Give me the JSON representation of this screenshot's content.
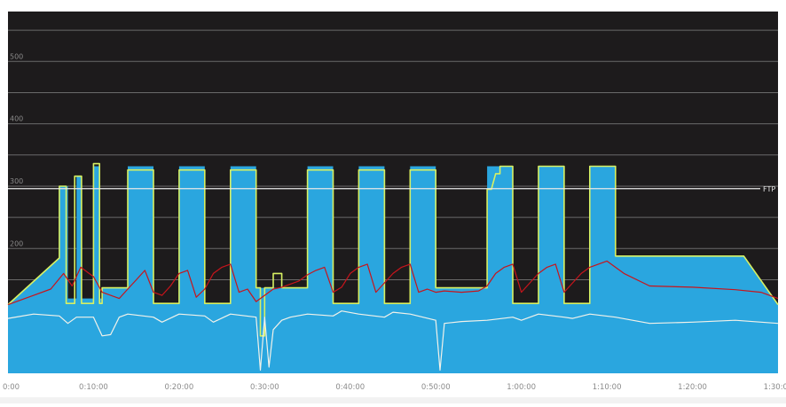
{
  "chart_data": {
    "type": "area",
    "x_unit": "minutes",
    "xlim": [
      0,
      90
    ],
    "ylim": [
      0,
      580
    ],
    "grid": true,
    "legend": "none",
    "x_tick_values": [
      0,
      10,
      20,
      30,
      40,
      50,
      60,
      70,
      80,
      90
    ],
    "x_ticks": [
      "0:00",
      "0:10:00",
      "0:20:00",
      "0:30:00",
      "0:40:00",
      "0:50:00",
      "1:00:00",
      "1:10:00",
      "1:20:00",
      "1:30:00"
    ],
    "y_ticks": [
      200,
      300,
      400,
      500
    ],
    "y_tick_labels": [
      "200",
      "300",
      "400",
      "500"
    ],
    "ftp": {
      "label": "FTP",
      "value": 296
    },
    "colors": {
      "background": "#1d1b1c",
      "grid": "#6a6a6a",
      "target": "#2aa6df",
      "power": "#d7f063",
      "heart_rate": "#c8141b",
      "cadence": "#f2f2ea",
      "ftp_line": "#e8e8e8",
      "tick_text": "#8a8a8a"
    },
    "series": [
      {
        "key": "target",
        "x": [
          0,
          6,
          6,
          7,
          7,
          8,
          8,
          8.6,
          8.6,
          10,
          10,
          10.7,
          10.7,
          11,
          11,
          14,
          14,
          17,
          17,
          20,
          20,
          23,
          23,
          26,
          26,
          29,
          29,
          35,
          35,
          38,
          38,
          41,
          41,
          44,
          44,
          47,
          47,
          50,
          50,
          56,
          56,
          59,
          59,
          62,
          62,
          65,
          65,
          68,
          68,
          71,
          71,
          86,
          90
        ],
        "values": [
          110,
          185,
          300,
          300,
          120,
          120,
          316,
          316,
          120,
          120,
          332,
          332,
          120,
          120,
          137,
          137,
          332,
          332,
          112,
          112,
          332,
          332,
          112,
          112,
          332,
          332,
          137,
          137,
          332,
          332,
          112,
          112,
          332,
          332,
          112,
          112,
          332,
          332,
          137,
          137,
          332,
          332,
          112,
          112,
          332,
          332,
          112,
          112,
          332,
          332,
          188,
          188,
          110
        ]
      },
      {
        "key": "power",
        "x": [
          0,
          6,
          6,
          6.8,
          6.8,
          7.8,
          7.8,
          8.6,
          8.6,
          10,
          10,
          10.7,
          10.7,
          11,
          11,
          14,
          14,
          17,
          17,
          20,
          20,
          23,
          23,
          26,
          26,
          29,
          29,
          29.5,
          29.5,
          30,
          30,
          31,
          31,
          32,
          32,
          35,
          35,
          38,
          38,
          41,
          41,
          44,
          44,
          47,
          47,
          50,
          50,
          56,
          56,
          56.5,
          57,
          57.5,
          57.5,
          59,
          59,
          62,
          62,
          65,
          65,
          68,
          68,
          71,
          71,
          86,
          90
        ],
        "values": [
          110,
          185,
          300,
          300,
          112,
          112,
          316,
          316,
          112,
          112,
          336,
          336,
          112,
          112,
          137,
          137,
          326,
          326,
          112,
          112,
          326,
          326,
          112,
          112,
          326,
          326,
          137,
          137,
          60,
          60,
          137,
          137,
          160,
          160,
          137,
          137,
          326,
          326,
          112,
          112,
          326,
          326,
          112,
          112,
          326,
          326,
          137,
          137,
          295,
          295,
          320,
          320,
          332,
          332,
          112,
          112,
          332,
          332,
          112,
          112,
          332,
          332,
          188,
          188,
          110
        ]
      },
      {
        "key": "heart_rate",
        "x": [
          0,
          3,
          5,
          6.5,
          7.5,
          8.5,
          10,
          11,
          13,
          14,
          15,
          16,
          17,
          18,
          19,
          20,
          21,
          22,
          23,
          24,
          25,
          26,
          27,
          28,
          29,
          30,
          31,
          32,
          34,
          35,
          36,
          37,
          38,
          39,
          40,
          41,
          42,
          43,
          44,
          45,
          46,
          47,
          48,
          49,
          50,
          51,
          53,
          55,
          56,
          57,
          58,
          59,
          60,
          61,
          62,
          63,
          64,
          65,
          66,
          67,
          68,
          69,
          70,
          72,
          75,
          80,
          85,
          88,
          90
        ],
        "values": [
          110,
          125,
          135,
          160,
          140,
          170,
          155,
          130,
          120,
          135,
          150,
          165,
          130,
          125,
          140,
          160,
          165,
          122,
          135,
          160,
          170,
          175,
          130,
          135,
          115,
          125,
          135,
          138,
          148,
          158,
          165,
          170,
          130,
          138,
          160,
          170,
          175,
          130,
          145,
          160,
          170,
          175,
          130,
          135,
          130,
          132,
          130,
          132,
          140,
          160,
          170,
          175,
          130,
          145,
          160,
          170,
          175,
          130,
          145,
          160,
          170,
          175,
          180,
          160,
          140,
          138,
          134,
          130,
          120
        ]
      },
      {
        "key": "cadence",
        "x": [
          0,
          3,
          6,
          7,
          8,
          10,
          11,
          12,
          13,
          14,
          17,
          18,
          20,
          23,
          24,
          26,
          29,
          29.5,
          30,
          30.5,
          31,
          32,
          33,
          35,
          38,
          39,
          41,
          44,
          45,
          47,
          50,
          50.5,
          51,
          53,
          56,
          59,
          60,
          62,
          65,
          66,
          68,
          71,
          73,
          75,
          80,
          85,
          90
        ],
        "values": [
          88,
          95,
          92,
          80,
          90,
          90,
          60,
          62,
          90,
          95,
          90,
          82,
          95,
          92,
          82,
          95,
          90,
          5,
          90,
          10,
          70,
          85,
          90,
          95,
          92,
          100,
          95,
          90,
          98,
          95,
          85,
          5,
          80,
          83,
          85,
          90,
          85,
          95,
          90,
          88,
          95,
          90,
          85,
          80,
          82,
          85,
          80
        ]
      }
    ]
  }
}
